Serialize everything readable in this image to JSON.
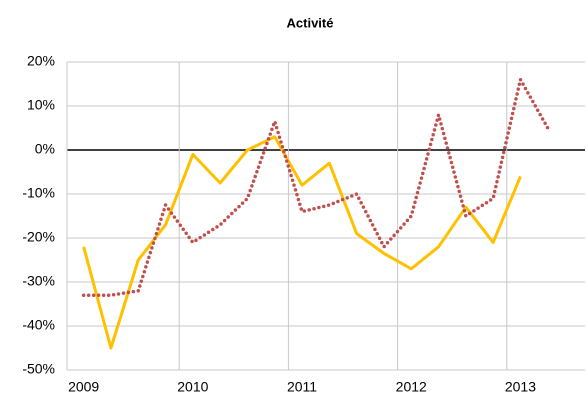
{
  "chart_data": {
    "type": "line",
    "title": "Activité",
    "categories": [
      "2009",
      null,
      null,
      null,
      "2010",
      null,
      null,
      null,
      "2011",
      null,
      null,
      null,
      "2012",
      null,
      null,
      null,
      "2013",
      null
    ],
    "series": [
      {
        "color": "#ffc000",
        "style": "solid",
        "values": [
          -22,
          -45,
          -25,
          -17,
          -1,
          -7.5,
          0,
          3,
          -8,
          -3,
          -19,
          -23.5,
          -27,
          -22,
          -13,
          -21,
          -6,
          null
        ]
      },
      {
        "color": "#c0504d",
        "style": "dotted",
        "values": [
          -33,
          -33,
          -32,
          -12.5,
          -21,
          -17,
          -11,
          6.5,
          -14,
          -12.5,
          -10,
          -22,
          -15,
          8,
          -15,
          -11,
          16,
          5
        ]
      }
    ],
    "ylim": [
      -50,
      20
    ],
    "yticks": [
      {
        "value": -50,
        "label": "-50%"
      },
      {
        "value": -40,
        "label": "-40%"
      },
      {
        "value": -30,
        "label": "-30%"
      },
      {
        "value": -20,
        "label": "-20%"
      },
      {
        "value": -10,
        "label": "-10%"
      },
      {
        "value": 0,
        "label": "0%"
      },
      {
        "value": 10,
        "label": "10%"
      },
      {
        "value": 20,
        "label": "20%"
      }
    ],
    "grid": true
  }
}
